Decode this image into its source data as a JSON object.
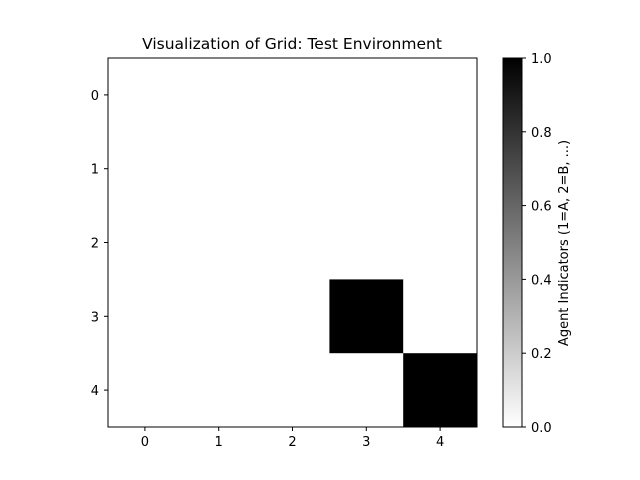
{
  "chart_data": {
    "type": "heatmap",
    "title": "Visualization of Grid: Test Environment",
    "x_ticks": [
      "0",
      "1",
      "2",
      "3",
      "4"
    ],
    "y_ticks": [
      "0",
      "1",
      "2",
      "3",
      "4"
    ],
    "grid": [
      [
        0,
        0,
        0,
        0,
        0
      ],
      [
        0,
        0,
        0,
        0,
        0
      ],
      [
        0,
        0,
        0,
        0,
        0
      ],
      [
        0,
        0,
        0,
        1,
        0
      ],
      [
        0,
        0,
        0,
        0,
        1
      ]
    ],
    "colormap": {
      "low": "#ffffff",
      "high": "#000000"
    },
    "colorbar": {
      "label": "Agent Indicators (1=A, 2=B, ...)",
      "range": [
        0.0,
        1.0
      ],
      "ticks": [
        "0.0",
        "0.2",
        "0.4",
        "0.6",
        "0.8",
        "1.0"
      ]
    },
    "grid_lines": false
  }
}
